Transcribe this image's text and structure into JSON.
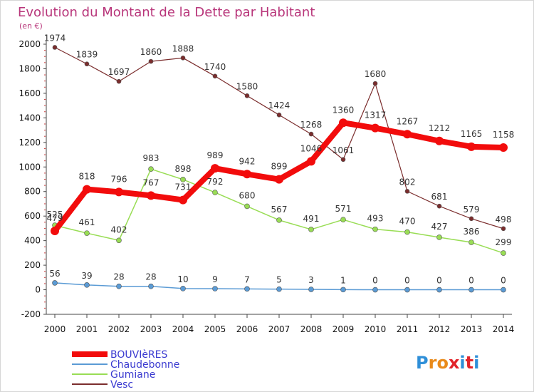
{
  "chart_data": {
    "type": "line",
    "title": "Evolution du Montant de la Dette par Habitant",
    "subtitle": "(en €)",
    "x": [
      "2000",
      "2001",
      "2002",
      "2003",
      "2004",
      "2005",
      "2006",
      "2007",
      "2008",
      "2009",
      "2010",
      "2011",
      "2012",
      "2013",
      "2014"
    ],
    "yticks": [
      -200,
      0,
      200,
      400,
      600,
      800,
      1000,
      1200,
      1400,
      1600,
      1800,
      2000
    ],
    "ylim": [
      -200,
      2000
    ],
    "grid": false,
    "legend_position": "bottom-left",
    "series": [
      {
        "name": "BOUVIèRES",
        "color": "#f20c0c",
        "values": [
          479,
          818,
          796,
          767,
          731,
          989,
          942,
          899,
          1046,
          1360,
          1317,
          1267,
          1212,
          1165,
          1158
        ],
        "labels": [
          "479",
          "818",
          "796",
          "767",
          "731",
          "989",
          "942",
          "899",
          "1046",
          "1360",
          "1317",
          "1267",
          "1212",
          "1165",
          "1158"
        ]
      },
      {
        "name": "Chaudebonne",
        "color": "#5b9bd5",
        "values": [
          56,
          39,
          28,
          28,
          10,
          9,
          7,
          5,
          3,
          1,
          0,
          0,
          0,
          0,
          0
        ],
        "labels": [
          "56",
          "39",
          "28",
          "28",
          "10",
          "9",
          "7",
          "5",
          "3",
          "1",
          "0",
          "0",
          "0",
          "0",
          "0"
        ]
      },
      {
        "name": "Gumiane",
        "color": "#99dd55",
        "values": [
          525,
          461,
          402,
          983,
          898,
          792,
          680,
          567,
          491,
          571,
          493,
          470,
          427,
          386,
          299
        ],
        "labels": [
          "525",
          "461",
          "402",
          "983",
          "898",
          "792",
          "680",
          "567",
          "491",
          "571",
          "493",
          "470",
          "427",
          "386",
          "299"
        ]
      },
      {
        "name": "Vesc",
        "color": "#7b2d2d",
        "values": [
          1974,
          1839,
          1697,
          1860,
          1888,
          1740,
          1580,
          1424,
          1268,
          1061,
          1680,
          802,
          681,
          579,
          498
        ],
        "labels": [
          "1974",
          "1839",
          "1697",
          "1860",
          "1888",
          "1740",
          "1580",
          "1424",
          "1268",
          "1061",
          "1680",
          "802",
          "681",
          "579",
          "498"
        ]
      }
    ]
  },
  "logo": {
    "text": "Proxiti",
    "letters": [
      "P",
      "r",
      "o",
      "x",
      "i",
      "t",
      "i"
    ],
    "colors": [
      "#2f8fd8",
      "#e98a1a",
      "#e98a1a",
      "#e2232a",
      "#2f8fd8",
      "#e2232a",
      "#2f8fd8"
    ]
  }
}
